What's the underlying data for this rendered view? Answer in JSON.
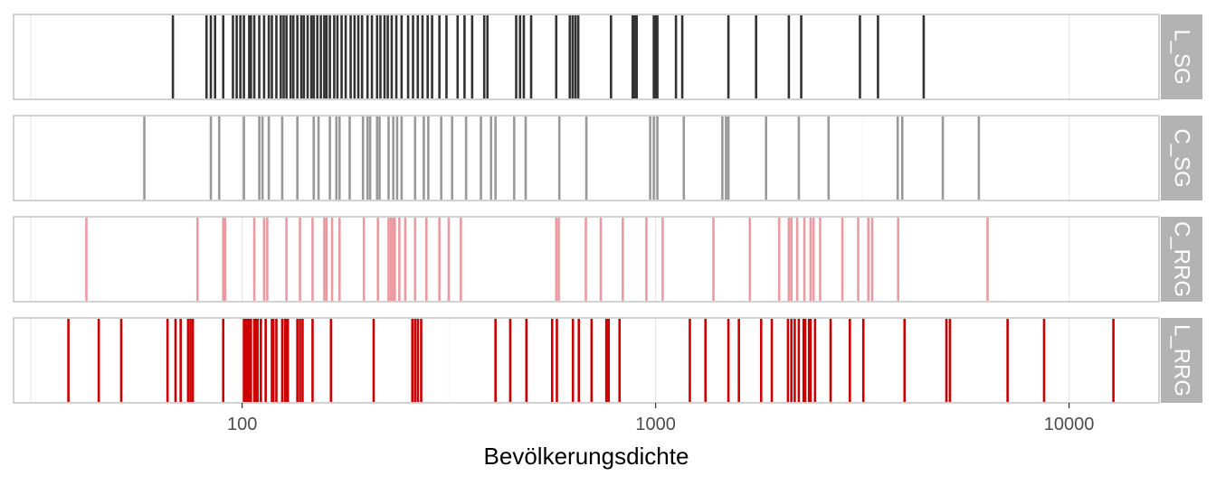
{
  "chart_data": {
    "type": "rug",
    "xlabel": "Bevölkerungsdichte",
    "x_scale": "log10",
    "xlim": [
      28,
      16500
    ],
    "x_ticks": [
      {
        "value": 100,
        "label": "100"
      },
      {
        "value": 1000,
        "label": "1000"
      },
      {
        "value": 10000,
        "label": "10000"
      }
    ],
    "grid": true,
    "panels": [
      {
        "label": "L_SG",
        "color": "#333333",
        "values": [
          68,
          82,
          84,
          86,
          90,
          95,
          97,
          99,
          101,
          104,
          105,
          107,
          110,
          113,
          116,
          118,
          121,
          124,
          126,
          128,
          131,
          133,
          136,
          139,
          141,
          144,
          147,
          149,
          152,
          155,
          158,
          160,
          163,
          167,
          170,
          174,
          178,
          183,
          187,
          191,
          195,
          201,
          206,
          212,
          216,
          221,
          225,
          230,
          236,
          243,
          252,
          259,
          266,
          273,
          281,
          288,
          300,
          312,
          332,
          345,
          360,
          385,
          392,
          460,
          470,
          480,
          500,
          575,
          620,
          630,
          640,
          650,
          780,
          880,
          890,
          900,
          990,
          1000,
          1010,
          1120,
          1160,
          1500,
          1750,
          2100,
          2250,
          3120,
          3450,
          4450
        ]
      },
      {
        "label": "C_SG",
        "color": "#999999",
        "values": [
          58,
          84,
          88,
          101,
          110,
          112,
          116,
          125,
          136,
          149,
          153,
          163,
          169,
          172,
          182,
          196,
          201,
          204,
          212,
          215,
          226,
          232,
          237,
          243,
          262,
          275,
          282,
          303,
          322,
          348,
          378,
          400,
          410,
          455,
          485,
          585,
          680,
          970,
          990,
          1010,
          1170,
          1450,
          1480,
          1500,
          1850,
          2220,
          2620,
          3850,
          3950,
          4950,
          6050
        ]
      },
      {
        "label": "C_RRG",
        "color": "#ec9aa0",
        "values": [
          42,
          78,
          90,
          91,
          107,
          113,
          115,
          128,
          138,
          148,
          158,
          160,
          165,
          172,
          197,
          213,
          226,
          229,
          232,
          234,
          240,
          248,
          262,
          279,
          300,
          316,
          338,
          575,
          583,
          678,
          737,
          833,
          950,
          1040,
          1380,
          1690,
          1990,
          2100,
          2130,
          2200,
          2290,
          2370,
          2410,
          2500,
          2830,
          3090,
          3270,
          3340,
          3860,
          6350
        ]
      },
      {
        "label": "L_RRG",
        "color": "#cc0000",
        "values": [
          38,
          45,
          51,
          66,
          69,
          71,
          74,
          75,
          76,
          90,
          101,
          102,
          103,
          104,
          105,
          107,
          108,
          109,
          111,
          114,
          118,
          119,
          121,
          125,
          127,
          128,
          129,
          136,
          138,
          140,
          148,
          164,
          208,
          258,
          262,
          266,
          271,
          410,
          445,
          487,
          562,
          577,
          631,
          652,
          700,
          760,
          770,
          818,
          1210,
          1320,
          1500,
          1590,
          1800,
          1910,
          2090,
          2130,
          2170,
          2220,
          2280,
          2300,
          2350,
          2370,
          2430,
          2650,
          2950,
          3180,
          4000,
          5050,
          5150,
          7100,
          8700,
          12800
        ]
      }
    ]
  }
}
